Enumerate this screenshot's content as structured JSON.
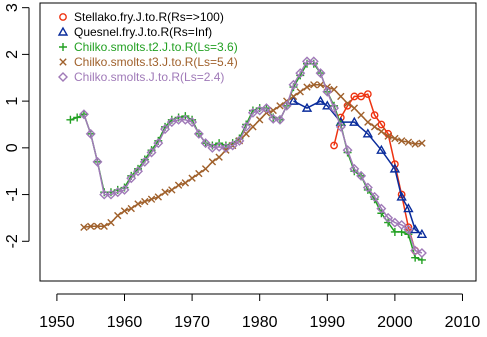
{
  "chart_data": {
    "type": "line",
    "title": "",
    "xlabel": "",
    "ylabel": "",
    "xlim": [
      1947.5,
      2012
    ],
    "ylim": [
      -2.85,
      3.1
    ],
    "x_ticks": [
      1950,
      1960,
      1970,
      1980,
      1990,
      2000,
      2010
    ],
    "y_ticks": [
      -2,
      -1,
      0,
      1,
      2,
      3
    ],
    "x_tick_labels": [
      "1950",
      "1960",
      "1970",
      "1980",
      "1990",
      "2000",
      "2010"
    ],
    "y_tick_labels": [
      "-2",
      "-1",
      "0",
      "1",
      "2",
      "3"
    ],
    "grid": false,
    "legend_position": "top-left",
    "series": [
      {
        "name": "Stellako.fry.J.to.R(Rs=>100)",
        "color": "#ee3311",
        "marker": "circle-open",
        "x": [
          1991,
          1992,
          1993,
          1994,
          1995,
          1996,
          1997,
          1998,
          1999,
          2000,
          2001,
          2002,
          2003
        ],
        "y": [
          0.05,
          0.65,
          0.9,
          1.1,
          1.1,
          1.15,
          0.7,
          0.5,
          0.3,
          -0.35,
          -1.0,
          -1.7,
          -2.2
        ]
      },
      {
        "name": "Quesnel.fry.J.to.R(Rs=Inf)",
        "color": "#0a2c9c",
        "marker": "triangle-open",
        "x": [
          1985,
          1987,
          1989,
          1990,
          1992,
          1994,
          1996,
          1998,
          2000,
          2001,
          2002,
          2003,
          2004
        ],
        "y": [
          1.0,
          0.85,
          1.0,
          0.9,
          0.55,
          0.55,
          0.3,
          -0.05,
          -0.45,
          -1.05,
          -1.3,
          -1.75,
          -1.85
        ]
      },
      {
        "name": "Chilko.smolts.t2.J.to.R(Ls=3.6)",
        "color": "#22a022",
        "marker": "plus",
        "x": [
          1952,
          1953,
          1954,
          1955,
          1956,
          1957,
          1958,
          1959,
          1960,
          1961,
          1962,
          1963,
          1964,
          1965,
          1966,
          1967,
          1968,
          1969,
          1970,
          1971,
          1972,
          1973,
          1974,
          1975,
          1976,
          1977,
          1978,
          1979,
          1980,
          1981,
          1982,
          1983,
          1984,
          1985,
          1986,
          1987,
          1988,
          1989,
          1990,
          1991,
          1992,
          1993,
          1994,
          1995,
          1996,
          1997,
          1998,
          1999,
          2000,
          2001,
          2002,
          2003,
          2004
        ],
        "y": [
          0.6,
          0.65,
          0.72,
          0.3,
          -0.3,
          -0.95,
          -0.95,
          -0.9,
          -0.85,
          -0.6,
          -0.45,
          -0.25,
          -0.05,
          0.15,
          0.45,
          0.6,
          0.65,
          0.68,
          0.6,
          0.3,
          0.1,
          0.05,
          0.1,
          0.05,
          0.1,
          0.2,
          0.5,
          0.8,
          0.85,
          0.85,
          0.65,
          0.6,
          0.9,
          1.3,
          1.55,
          1.8,
          1.8,
          1.6,
          1.2,
          0.9,
          0.5,
          -0.1,
          -0.5,
          -0.6,
          -0.9,
          -1.1,
          -1.4,
          -1.6,
          -1.8,
          -1.8,
          -1.85,
          -2.35,
          -2.4
        ]
      },
      {
        "name": "Chilko.smolts.t3.J.to.R(Ls=5.4)",
        "color": "#a0612c",
        "marker": "x",
        "x": [
          1954,
          1955,
          1956,
          1957,
          1958,
          1959,
          1960,
          1961,
          1962,
          1963,
          1964,
          1965,
          1966,
          1967,
          1968,
          1969,
          1970,
          1971,
          1972,
          1973,
          1974,
          1975,
          1976,
          1977,
          1978,
          1979,
          1980,
          1981,
          1982,
          1983,
          1984,
          1985,
          1986,
          1987,
          1988,
          1989,
          1990,
          1991,
          1992,
          1993,
          1994,
          1995,
          1996,
          1997,
          1998,
          1999,
          2000,
          2001,
          2002,
          2003,
          2004
        ],
        "y": [
          -1.7,
          -1.68,
          -1.68,
          -1.68,
          -1.6,
          -1.45,
          -1.35,
          -1.3,
          -1.2,
          -1.15,
          -1.1,
          -1.05,
          -0.95,
          -0.9,
          -0.8,
          -0.75,
          -0.65,
          -0.55,
          -0.45,
          -0.3,
          -0.2,
          -0.05,
          0.05,
          0.15,
          0.3,
          0.45,
          0.6,
          0.75,
          0.8,
          0.9,
          1.0,
          1.1,
          1.2,
          1.3,
          1.35,
          1.35,
          1.3,
          1.25,
          1.1,
          0.95,
          0.85,
          0.7,
          0.55,
          0.45,
          0.35,
          0.25,
          0.2,
          0.15,
          0.12,
          0.08,
          0.1
        ]
      },
      {
        "name": "Chilko.smolts.J.to.R(Ls=2.4)",
        "color": "#a07ab8",
        "marker": "diamond-open",
        "x": [
          1954,
          1955,
          1956,
          1957,
          1958,
          1959,
          1960,
          1961,
          1962,
          1963,
          1964,
          1965,
          1966,
          1967,
          1968,
          1969,
          1970,
          1971,
          1972,
          1973,
          1974,
          1975,
          1976,
          1977,
          1978,
          1979,
          1980,
          1981,
          1982,
          1983,
          1984,
          1985,
          1986,
          1987,
          1988,
          1989,
          1990,
          1991,
          1992,
          1993,
          1994,
          1995,
          1996,
          1997,
          1998,
          1999,
          2000,
          2001,
          2002,
          2003,
          2004
        ],
        "y": [
          0.72,
          0.3,
          -0.3,
          -1.0,
          -1.0,
          -0.95,
          -0.9,
          -0.65,
          -0.5,
          -0.3,
          -0.1,
          0.1,
          0.4,
          0.55,
          0.6,
          0.6,
          0.55,
          0.3,
          0.1,
          0.0,
          0.02,
          0.0,
          0.05,
          0.15,
          0.45,
          0.75,
          0.8,
          0.85,
          0.62,
          0.6,
          0.9,
          1.35,
          1.6,
          1.85,
          1.85,
          1.6,
          1.2,
          0.85,
          0.45,
          -0.05,
          -0.45,
          -0.6,
          -0.85,
          -1.05,
          -1.3,
          -1.5,
          -1.6,
          -1.65,
          -1.75,
          -2.2,
          -2.25
        ]
      }
    ]
  }
}
